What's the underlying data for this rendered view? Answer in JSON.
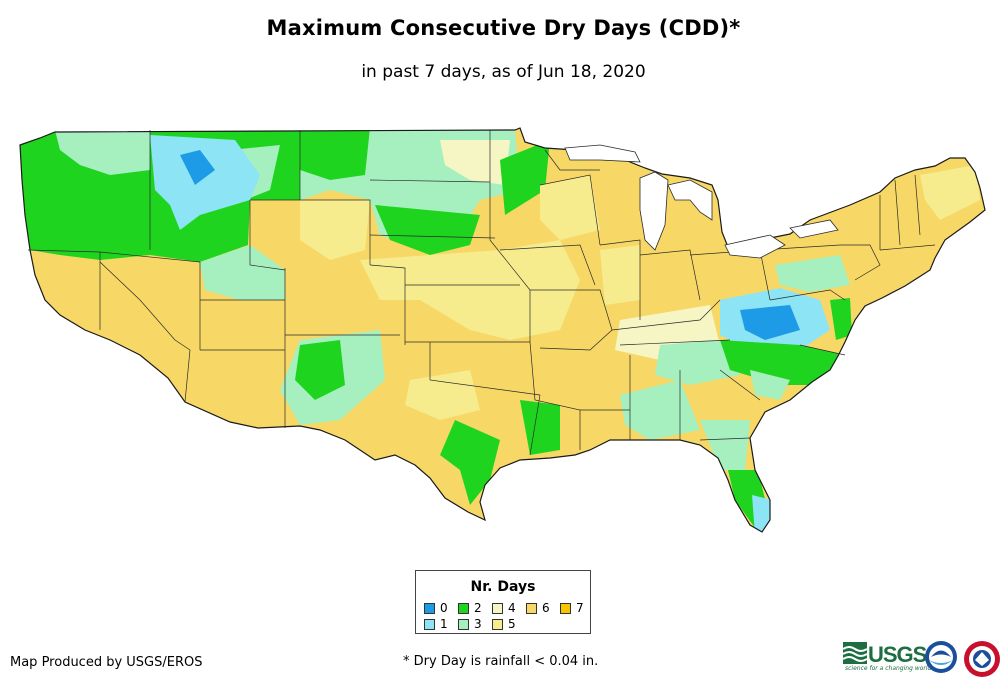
{
  "title": "Maximum Consecutive Dry Days (CDD)*",
  "subtitle": "in past 7 days, as of Jun 18, 2020",
  "legend": {
    "title": "Nr. Days",
    "items": [
      {
        "label": "0",
        "color": "#1e9be6"
      },
      {
        "label": "1",
        "color": "#8ce4f5"
      },
      {
        "label": "2",
        "color": "#1fd41f"
      },
      {
        "label": "3",
        "color": "#a6f0c0"
      },
      {
        "label": "4",
        "color": "#f6f6c4"
      },
      {
        "label": "5",
        "color": "#f6ec8e"
      },
      {
        "label": "6",
        "color": "#f7d866"
      },
      {
        "label": "7",
        "color": "#f7c400"
      }
    ]
  },
  "credits": {
    "producer": "Map Produced by USGS/EROS",
    "footnote": "* Dry Day is rainfall < 0.04 in."
  },
  "logos": {
    "usgs": "USGS",
    "usgs_tagline": "science for a changing world"
  }
}
